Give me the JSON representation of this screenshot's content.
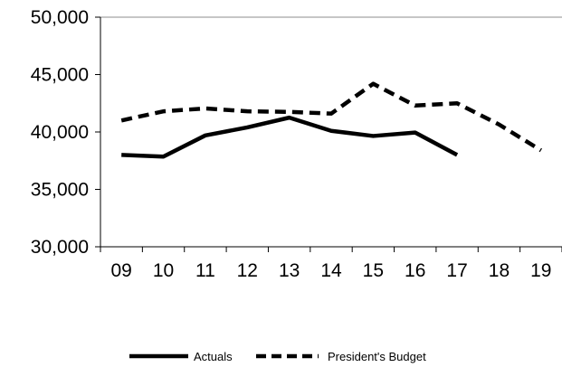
{
  "chart_data": {
    "type": "line",
    "categories": [
      "09",
      "10",
      "11",
      "12",
      "13",
      "14",
      "15",
      "16",
      "17",
      "18",
      "19"
    ],
    "series": [
      {
        "name": "Actuals",
        "style": "solid",
        "color": "#000000",
        "values": [
          38000,
          37850,
          39700,
          40400,
          41250,
          40100,
          39650,
          39950,
          38000,
          null,
          null
        ]
      },
      {
        "name": "President's Budget",
        "style": "dashed",
        "color": "#000000",
        "values": [
          41000,
          41800,
          42050,
          41800,
          41750,
          41600,
          44200,
          42300,
          42500,
          40650,
          38400
        ]
      }
    ],
    "ylim": [
      30000,
      50000
    ],
    "yticks": [
      {
        "value": 30000,
        "label": "30,000"
      },
      {
        "value": 35000,
        "label": "35,000"
      },
      {
        "value": 40000,
        "label": "40,000"
      },
      {
        "value": 45000,
        "label": "45,000"
      },
      {
        "value": 50000,
        "label": "50,000"
      }
    ],
    "grid": false,
    "legend_position": "bottom"
  }
}
